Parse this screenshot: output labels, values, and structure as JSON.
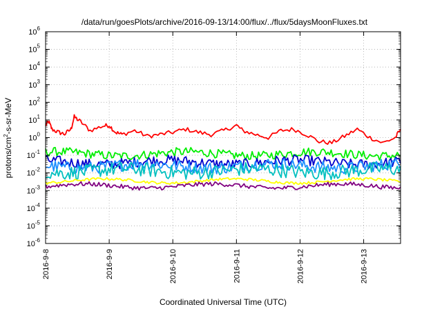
{
  "chart_data": {
    "type": "line",
    "title": "/data/run/goesPlots/archive/2016-09-13/14:00/flux/../flux/5daysMoonFluxes.txt",
    "xlabel": "Coordinated Universal Time (UTC)",
    "ylabel": "protons/cm2-s-sr-MeV",
    "yscale": "log",
    "ylim_exponent": [
      -6,
      6
    ],
    "y_tick_exponents": [
      6,
      5,
      4,
      3,
      2,
      1,
      0,
      -1,
      -2,
      -3,
      -4,
      -5,
      -6
    ],
    "x_tick_labels": [
      "2016-9-8",
      "2016-9-9",
      "2016-9-10",
      "2016-9-11",
      "2016-9-12",
      "2016-9-13"
    ],
    "x_range_days": [
      0,
      5.58
    ],
    "grid": true,
    "series_colors": [
      "#ff0000",
      "#00ee00",
      "#0000cc",
      "#1e90ff",
      "#00c0c0",
      "#ffff00",
      "#800080"
    ],
    "series": [
      {
        "color": "#ff0000",
        "points": [
          [
            0,
            5
          ],
          [
            0.05,
            8
          ],
          [
            0.1,
            3
          ],
          [
            0.2,
            2
          ],
          [
            0.3,
            1.6
          ],
          [
            0.4,
            3
          ],
          [
            0.45,
            15
          ],
          [
            0.55,
            8
          ],
          [
            0.7,
            2.5
          ],
          [
            0.9,
            4.5
          ],
          [
            1,
            5
          ],
          [
            1.1,
            2
          ],
          [
            1.2,
            1.5
          ],
          [
            1.4,
            2.5
          ],
          [
            1.6,
            1.2
          ],
          [
            1.8,
            1.5
          ],
          [
            2,
            2
          ],
          [
            2.2,
            3
          ],
          [
            2.4,
            2
          ],
          [
            2.6,
            1.5
          ],
          [
            2.8,
            2.5
          ],
          [
            3,
            5
          ],
          [
            3.1,
            2.5
          ],
          [
            3.3,
            1.5
          ],
          [
            3.5,
            1
          ],
          [
            3.7,
            2.5
          ],
          [
            3.9,
            3
          ],
          [
            4.1,
            1.5
          ],
          [
            4.3,
            0.6
          ],
          [
            4.5,
            0.5
          ],
          [
            4.7,
            1.2
          ],
          [
            4.9,
            3
          ],
          [
            5.1,
            1
          ],
          [
            5.3,
            0.5
          ],
          [
            5.5,
            1
          ],
          [
            5.58,
            3
          ]
        ]
      },
      {
        "color": "#00ee00",
        "base": 0.12,
        "spread": 0.5
      },
      {
        "color": "#0000cc",
        "base": 0.04,
        "spread": 0.6
      },
      {
        "color": "#1e90ff",
        "base": 0.025,
        "spread": 0.7
      },
      {
        "color": "#00c0c0",
        "base": 0.013,
        "spread": 0.8
      },
      {
        "color": "#ffff00",
        "base": 0.0035,
        "spread": 0.15
      },
      {
        "color": "#800080",
        "base": 0.0018,
        "spread": 0.25
      }
    ]
  }
}
